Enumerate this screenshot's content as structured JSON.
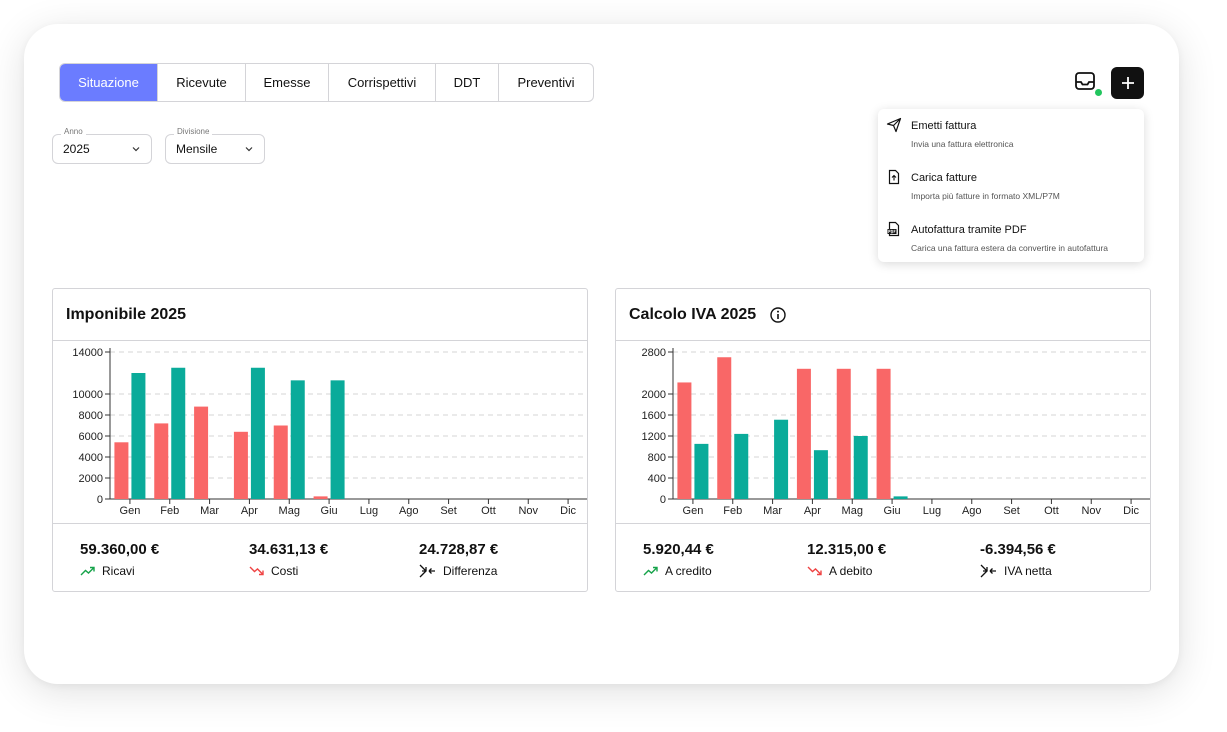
{
  "tabs": [
    "Situazione",
    "Ricevute",
    "Emesse",
    "Corrispettivi",
    "DDT",
    "Preventivi"
  ],
  "active_tab": "Situazione",
  "filters": {
    "year": {
      "label": "Anno",
      "value": "2025"
    },
    "division": {
      "label": "Divisione",
      "value": "Mensile"
    }
  },
  "actions": {
    "inbox_icon": "inbox-icon",
    "add_icon": "plus-icon",
    "status_color": "#22c55e"
  },
  "menu": [
    {
      "icon": "send-icon",
      "title": "Emetti fattura",
      "subtitle": "Invia una fattura elettronica"
    },
    {
      "icon": "file-upload-icon",
      "title": "Carica fatture",
      "subtitle": "Importa più fatture in formato XML/P7M"
    },
    {
      "icon": "pdf-icon",
      "title": "Autofattura tramite PDF",
      "subtitle": "Carica una fattura estera da convertire in autofattura"
    }
  ],
  "colors": {
    "accent": "#6b7cff",
    "red": "#f96767",
    "teal": "#0aab9a"
  },
  "cards": [
    {
      "title": "Imponibile 2025",
      "stats": [
        {
          "value": "59.360,00 €",
          "label": "Ricavi",
          "icon": "trend-up-icon"
        },
        {
          "value": "34.631,13 €",
          "label": "Costi",
          "icon": "trend-down-icon"
        },
        {
          "value": "24.728,87 €",
          "label": "Differenza",
          "icon": "arrows-converge-icon"
        }
      ]
    },
    {
      "title": "Calcolo IVA 2025",
      "stats": [
        {
          "value": "5.920,44 €",
          "label": "A credito",
          "icon": "trend-up-icon"
        },
        {
          "value": "12.315,00 €",
          "label": "A debito",
          "icon": "trend-down-icon"
        },
        {
          "value": "-6.394,56 €",
          "label": "IVA netta",
          "icon": "arrows-converge-icon"
        }
      ]
    }
  ],
  "chart_data": [
    {
      "type": "bar",
      "categories": [
        "Gen",
        "Feb",
        "Mar",
        "Apr",
        "Mag",
        "Giu",
        "Lug",
        "Ago",
        "Set",
        "Ott",
        "Nov",
        "Dic"
      ],
      "yticks": [
        0,
        2000,
        4000,
        6000,
        8000,
        10000,
        14000
      ],
      "ylim": [
        0,
        14000
      ],
      "grid": true,
      "series": [
        {
          "color": "#f96767",
          "values": [
            5400,
            7200,
            8800,
            6400,
            7000,
            250,
            0,
            0,
            0,
            0,
            0,
            0
          ]
        },
        {
          "color": "#0aab9a",
          "values": [
            12000,
            12500,
            0,
            12500,
            11300,
            11300,
            0,
            0,
            0,
            0,
            0,
            0
          ]
        }
      ]
    },
    {
      "type": "bar",
      "categories": [
        "Gen",
        "Feb",
        "Mar",
        "Apr",
        "Mag",
        "Giu",
        "Lug",
        "Ago",
        "Set",
        "Ott",
        "Nov",
        "Dic"
      ],
      "yticks": [
        0,
        400,
        800,
        1200,
        1600,
        2000,
        2800
      ],
      "ylim": [
        0,
        2800
      ],
      "grid": true,
      "series": [
        {
          "color": "#f96767",
          "values": [
            2220,
            2700,
            0,
            2480,
            2480,
            2480,
            0,
            0,
            0,
            0,
            0,
            0
          ]
        },
        {
          "color": "#0aab9a",
          "values": [
            1050,
            1240,
            1510,
            930,
            1200,
            50,
            0,
            0,
            0,
            0,
            0,
            0
          ]
        }
      ]
    }
  ]
}
